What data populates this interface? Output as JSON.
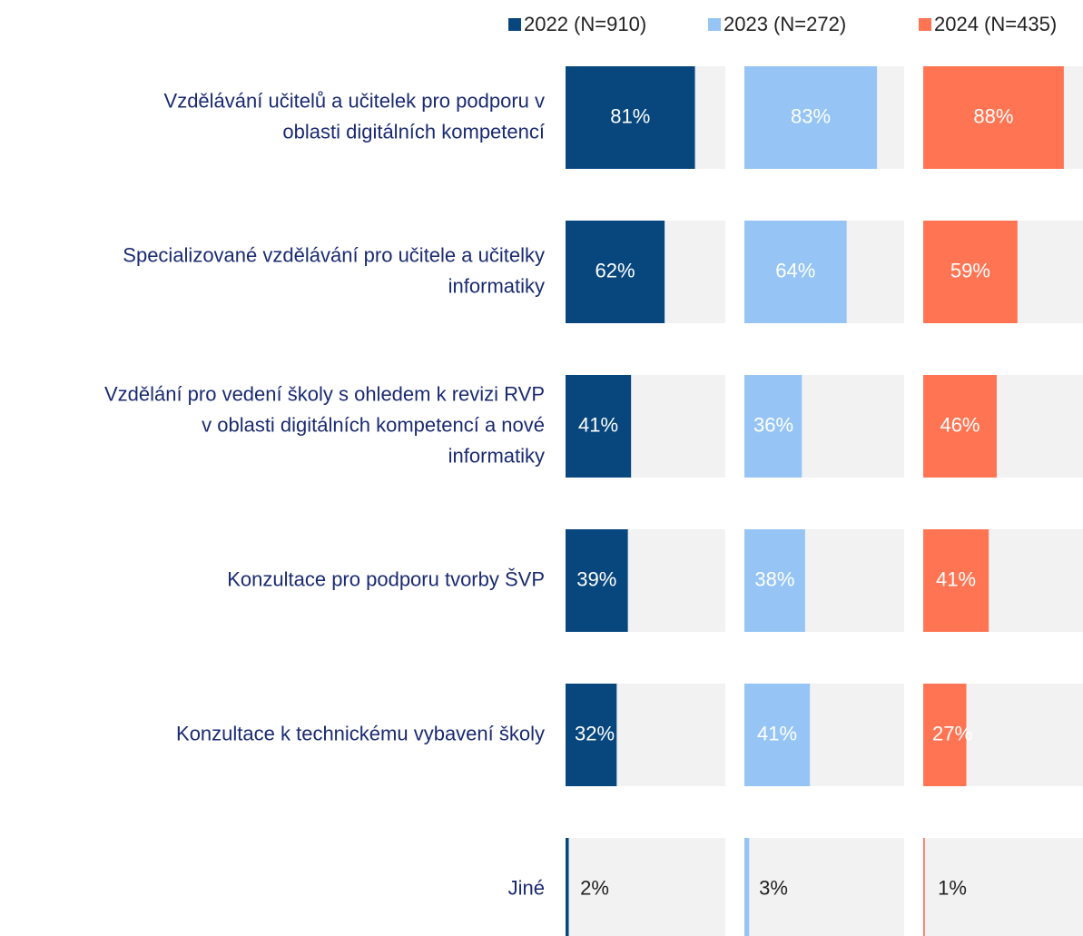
{
  "chart_data": {
    "type": "bar",
    "orientation": "horizontal",
    "layout": "small-multiples",
    "categories": [
      "Vzdělávání učitelů a učitelek pro podporu v\noblasti digitálních kompetencí",
      "Specializované vzdělávání pro učitele a učitelky\ninformatiky",
      "Vzdělání pro vedení školy s ohledem k revizi RVP\nv oblasti digitálních kompetencí a nové\ninformatiky",
      "Konzultace pro podporu tvorby ŠVP",
      "Konzultace k technickému vybavení školy",
      "Jiné"
    ],
    "series": [
      {
        "name": "2022 (N=910)",
        "color": "#08477e",
        "values": [
          81,
          62,
          41,
          39,
          32,
          2
        ],
        "value_labels": [
          "81%",
          "62%",
          "41%",
          "39%",
          "32%",
          "2%"
        ]
      },
      {
        "name": "2023 (N=272)",
        "color": "#96c5f5",
        "values": [
          83,
          64,
          36,
          38,
          41,
          3
        ],
        "value_labels": [
          "83%",
          "64%",
          "36%",
          "38%",
          "41%",
          "3%"
        ]
      },
      {
        "name": "2024 (N=435)",
        "color": "#ff7553",
        "values": [
          88,
          59,
          46,
          41,
          27,
          1
        ],
        "value_labels": [
          "88%",
          "59%",
          "46%",
          "41%",
          "27%",
          "1%"
        ]
      }
    ],
    "xlim": [
      0,
      100
    ],
    "background_color": "#f2f2f2",
    "legend": "top-right"
  }
}
